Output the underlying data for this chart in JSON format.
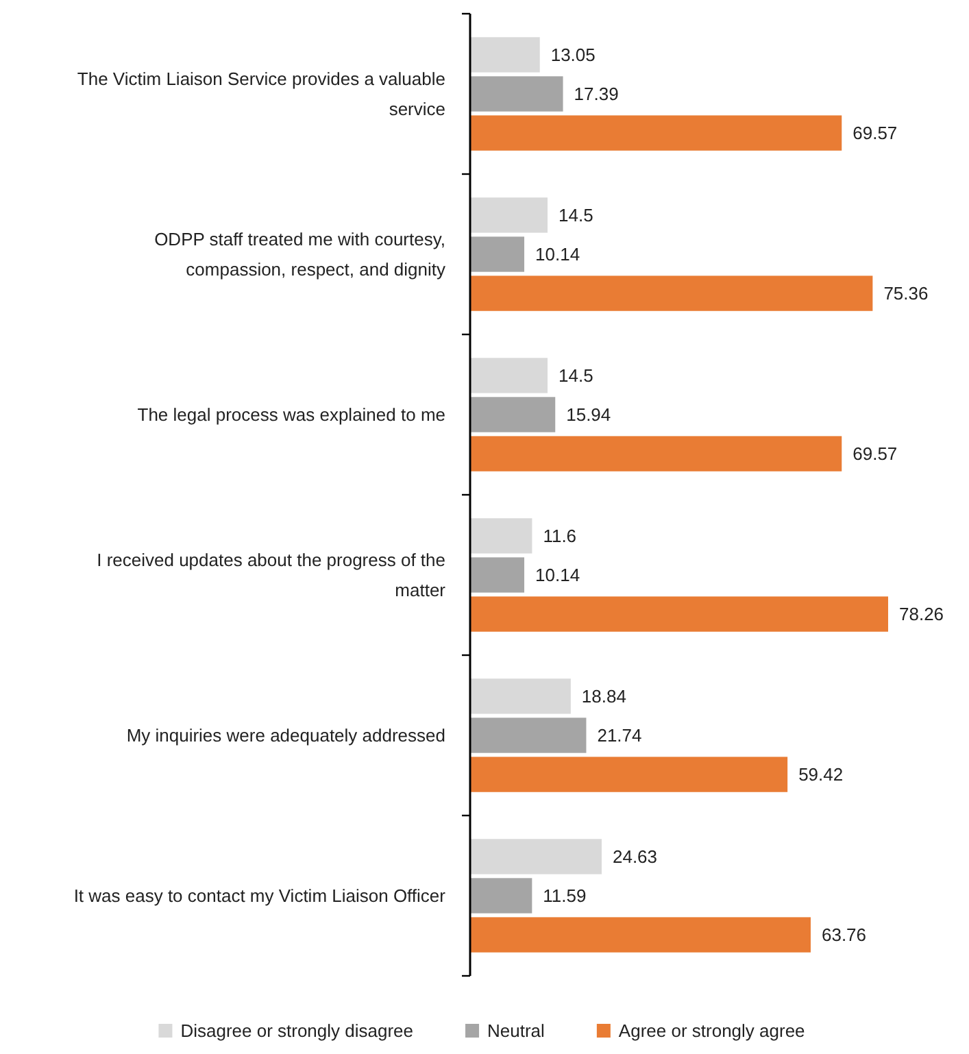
{
  "chart_data": {
    "type": "bar",
    "orientation": "horizontal",
    "categories": [
      "The Victim Liaison Service provides a valuable service",
      "ODPP staff treated me with courtesy, compassion, respect, and dignity",
      "The legal process was explained to me",
      "I received updates about the progress of the matter",
      "My inquiries were adequately addressed",
      "It was easy to contact my Victim Liaison Officer"
    ],
    "series": [
      {
        "name": "Disagree or strongly disagree",
        "color": "#d9d9d9",
        "values": [
          13.05,
          14.5,
          14.5,
          11.6,
          18.84,
          24.63
        ]
      },
      {
        "name": "Neutral",
        "color": "#a5a5a5",
        "values": [
          17.39,
          10.14,
          15.94,
          10.14,
          21.74,
          11.59
        ]
      },
      {
        "name": "Agree or strongly agree",
        "color": "#e97c34",
        "values": [
          69.57,
          75.36,
          69.57,
          78.26,
          59.42,
          63.76
        ]
      }
    ],
    "data_labels": true,
    "legend": "bottom"
  }
}
